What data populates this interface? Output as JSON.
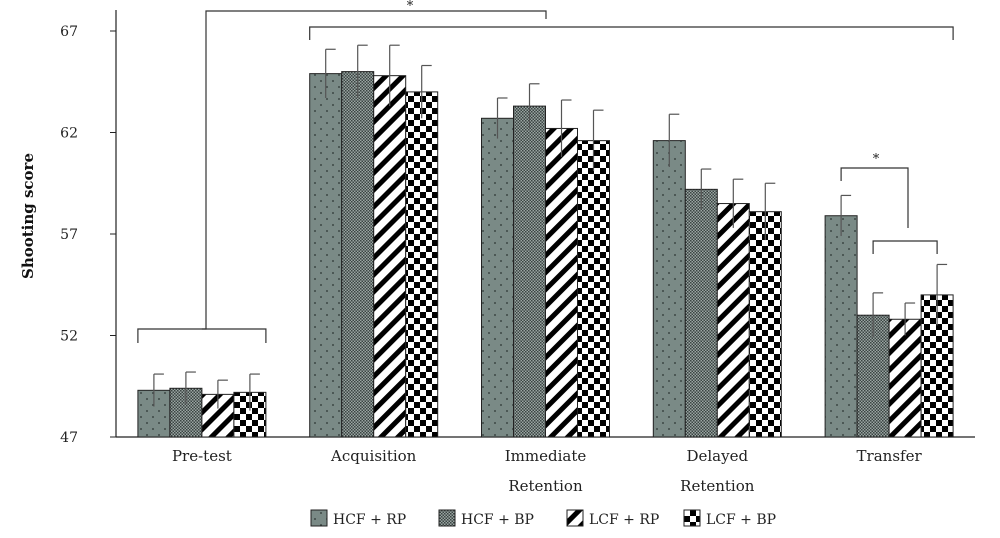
{
  "chart_data": {
    "type": "bar",
    "categories": [
      [
        "Pre-test"
      ],
      [
        "Acquisition"
      ],
      [
        "Immediate",
        "Retention"
      ],
      [
        "Delayed",
        "Retention"
      ],
      [
        "Transfer"
      ]
    ],
    "ylabel": "Shooting score",
    "xlabel": "",
    "ylim": [
      47,
      67
    ],
    "yticks": [
      "47",
      "52",
      "57",
      "62",
      "67"
    ],
    "legend_position": "bottom",
    "series": [
      {
        "name": "HCF + RP",
        "pattern": "dots",
        "color": "#7a8a86",
        "values": [
          49.3,
          64.9,
          62.7,
          61.6,
          57.9
        ],
        "errors": [
          0.8,
          1.2,
          1.0,
          1.3,
          1.0
        ]
      },
      {
        "name": "HCF + BP",
        "pattern": "fine-dots",
        "color": "#8a9693",
        "values": [
          49.4,
          65.0,
          63.3,
          59.2,
          53.0
        ],
        "errors": [
          0.8,
          1.3,
          1.1,
          1.0,
          1.1
        ]
      },
      {
        "name": "LCF + RP",
        "pattern": "diagonal",
        "color": "#000000",
        "values": [
          49.1,
          64.8,
          62.2,
          58.5,
          52.8
        ],
        "errors": [
          0.7,
          1.5,
          1.4,
          1.2,
          0.8
        ]
      },
      {
        "name": "LCF + BP",
        "pattern": "checker",
        "color": "#000000",
        "values": [
          49.2,
          64.0,
          61.6,
          58.1,
          54.0
        ],
        "errors": [
          0.9,
          1.3,
          1.5,
          1.4,
          1.5
        ]
      }
    ],
    "annotations": [
      {
        "type": "significance",
        "from": "Pre-test",
        "to": "Acquisition through Transfer",
        "label": "*"
      },
      {
        "type": "significance",
        "from": "Transfer HCF + RP",
        "to": "Transfer HCF + BP, LCF + RP, LCF + BP",
        "label": "*"
      }
    ],
    "grid": false
  }
}
